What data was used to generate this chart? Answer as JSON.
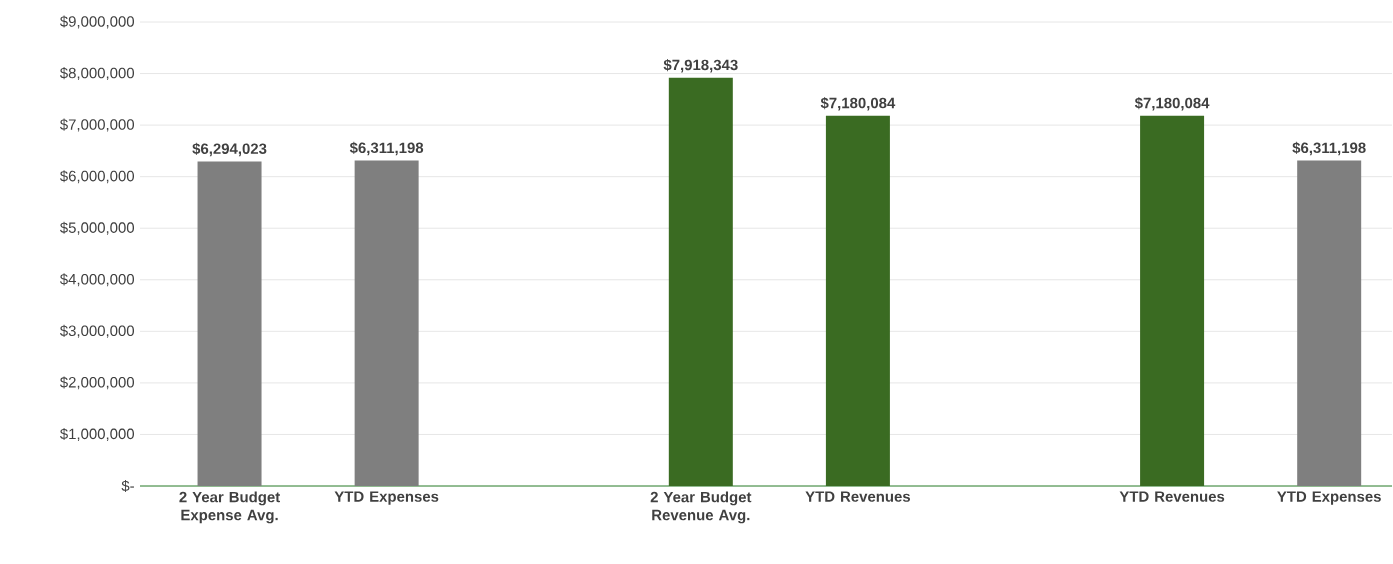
{
  "chart_data": {
    "type": "bar",
    "categories": [
      "2 Year Budget Expense Avg.",
      "YTD Expenses",
      null,
      "2 Year Budget Revenue Avg.",
      "YTD Revenues",
      null,
      "YTD Revenues",
      "YTD Expenses"
    ],
    "values": [
      6294023,
      6311198,
      null,
      7918343,
      7180084,
      null,
      7180084,
      6311198
    ],
    "value_labels": [
      "$6,294,023",
      "$6,311,198",
      null,
      "$7,918,343",
      "$7,180,084",
      null,
      "$7,180,084",
      "$6,311,198"
    ],
    "colors": [
      "#7f7f7f",
      "#7f7f7f",
      "#7f7f7f",
      "#3a6b22",
      "#3a6b22",
      "#3a6b22",
      "#3a6b22",
      "#7f7f7f"
    ],
    "ylim": [
      0,
      9000000
    ],
    "yticks": [
      {
        "value": 0,
        "label": "$-"
      },
      {
        "value": 1000000,
        "label": "$1,000,000"
      },
      {
        "value": 2000000,
        "label": "$2,000,000"
      },
      {
        "value": 3000000,
        "label": "$3,000,000"
      },
      {
        "value": 4000000,
        "label": "$4,000,000"
      },
      {
        "value": 5000000,
        "label": "$5,000,000"
      },
      {
        "value": 6000000,
        "label": "$6,000,000"
      },
      {
        "value": 7000000,
        "label": "$7,000,000"
      },
      {
        "value": 8000000,
        "label": "$8,000,000"
      },
      {
        "value": 9000000,
        "label": "$9,000,000"
      }
    ],
    "grid": "y"
  }
}
